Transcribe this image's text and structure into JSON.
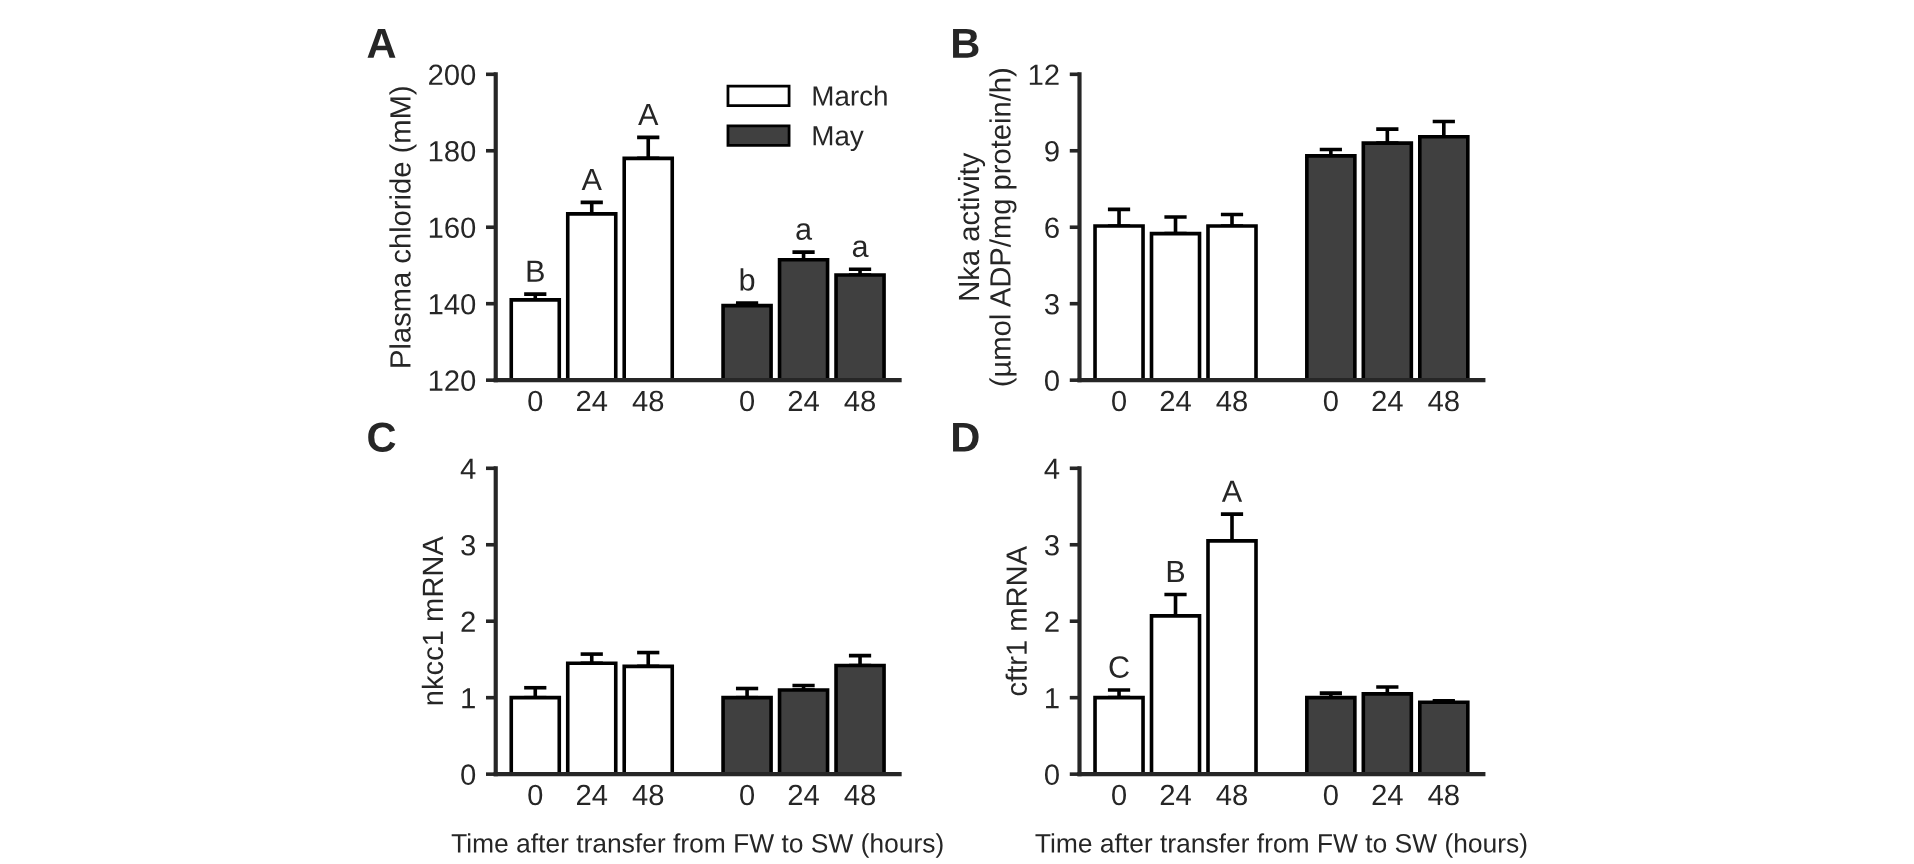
{
  "chart_data": [
    {
      "type": "bar",
      "title": "A",
      "ylabel": "Plasma chloride (mM)",
      "categories": [
        "0",
        "24",
        "48",
        "0",
        "24",
        "48"
      ],
      "ylim": [
        120,
        200
      ],
      "yticks": [
        120,
        140,
        160,
        180,
        200
      ],
      "legend": "top right",
      "series": [
        {
          "name": "March",
          "color": "#ffffff",
          "values": [
            141,
            163.5,
            178,
            null,
            null,
            null
          ],
          "errors": [
            1.5,
            3,
            5.5,
            null,
            null,
            null
          ],
          "value_labels": [
            "B",
            "A",
            "A",
            null,
            null,
            null
          ]
        },
        {
          "name": "May",
          "color": "#404040",
          "values": [
            null,
            null,
            null,
            139.5,
            151.5,
            147.5
          ],
          "errors": [
            null,
            null,
            null,
            0.7,
            2,
            1.5
          ],
          "value_labels": [
            null,
            null,
            null,
            "b",
            "a",
            "a"
          ]
        }
      ]
    },
    {
      "type": "bar",
      "title": "B",
      "ylabel": "Nka activity\n(µmol ADP/mg protein/h)",
      "categories": [
        "0",
        "24",
        "48",
        "0",
        "24",
        "48"
      ],
      "ylim": [
        0,
        12
      ],
      "yticks": [
        0,
        3,
        6,
        9,
        12
      ],
      "series": [
        {
          "color": "#ffffff",
          "values": [
            6.05,
            5.75,
            6.05,
            null,
            null,
            null
          ],
          "errors": [
            0.65,
            0.65,
            0.45,
            null,
            null,
            null
          ]
        },
        {
          "color": "#404040",
          "values": [
            null,
            null,
            null,
            8.8,
            9.3,
            9.55
          ],
          "errors": [
            null,
            null,
            null,
            0.25,
            0.55,
            0.6
          ]
        }
      ]
    },
    {
      "type": "bar",
      "title": "C",
      "ylabel": "nkcc1 mRNA",
      "xlabel": "Time after transfer from FW to SW (hours)",
      "categories": [
        "0",
        "24",
        "48",
        "0",
        "24",
        "48"
      ],
      "ylim": [
        0,
        4
      ],
      "yticks": [
        0,
        1,
        2,
        3,
        4
      ],
      "series": [
        {
          "color": "#ffffff",
          "values": [
            1.0,
            1.45,
            1.41,
            null,
            null,
            null
          ],
          "errors": [
            0.13,
            0.12,
            0.18,
            null,
            null,
            null
          ]
        },
        {
          "color": "#404040",
          "values": [
            null,
            null,
            null,
            1.0,
            1.1,
            1.42
          ],
          "errors": [
            null,
            null,
            null,
            0.12,
            0.06,
            0.13
          ]
        }
      ]
    },
    {
      "type": "bar",
      "title": "D",
      "ylabel": "cftr1 mRNA",
      "xlabel": "Time after transfer from FW to SW (hours)",
      "categories": [
        "0",
        "24",
        "48",
        "0",
        "24",
        "48"
      ],
      "ylim": [
        0,
        4
      ],
      "yticks": [
        0,
        1,
        2,
        3,
        4
      ],
      "series": [
        {
          "color": "#ffffff",
          "values": [
            1.0,
            2.07,
            3.05,
            null,
            null,
            null
          ],
          "errors": [
            0.1,
            0.28,
            0.35,
            null,
            null,
            null
          ],
          "value_labels": [
            "C",
            "B",
            "A",
            null,
            null,
            null
          ]
        },
        {
          "color": "#404040",
          "values": [
            null,
            null,
            null,
            1.0,
            1.05,
            0.94
          ],
          "errors": [
            null,
            null,
            null,
            0.06,
            0.09,
            0.02
          ]
        }
      ]
    }
  ]
}
